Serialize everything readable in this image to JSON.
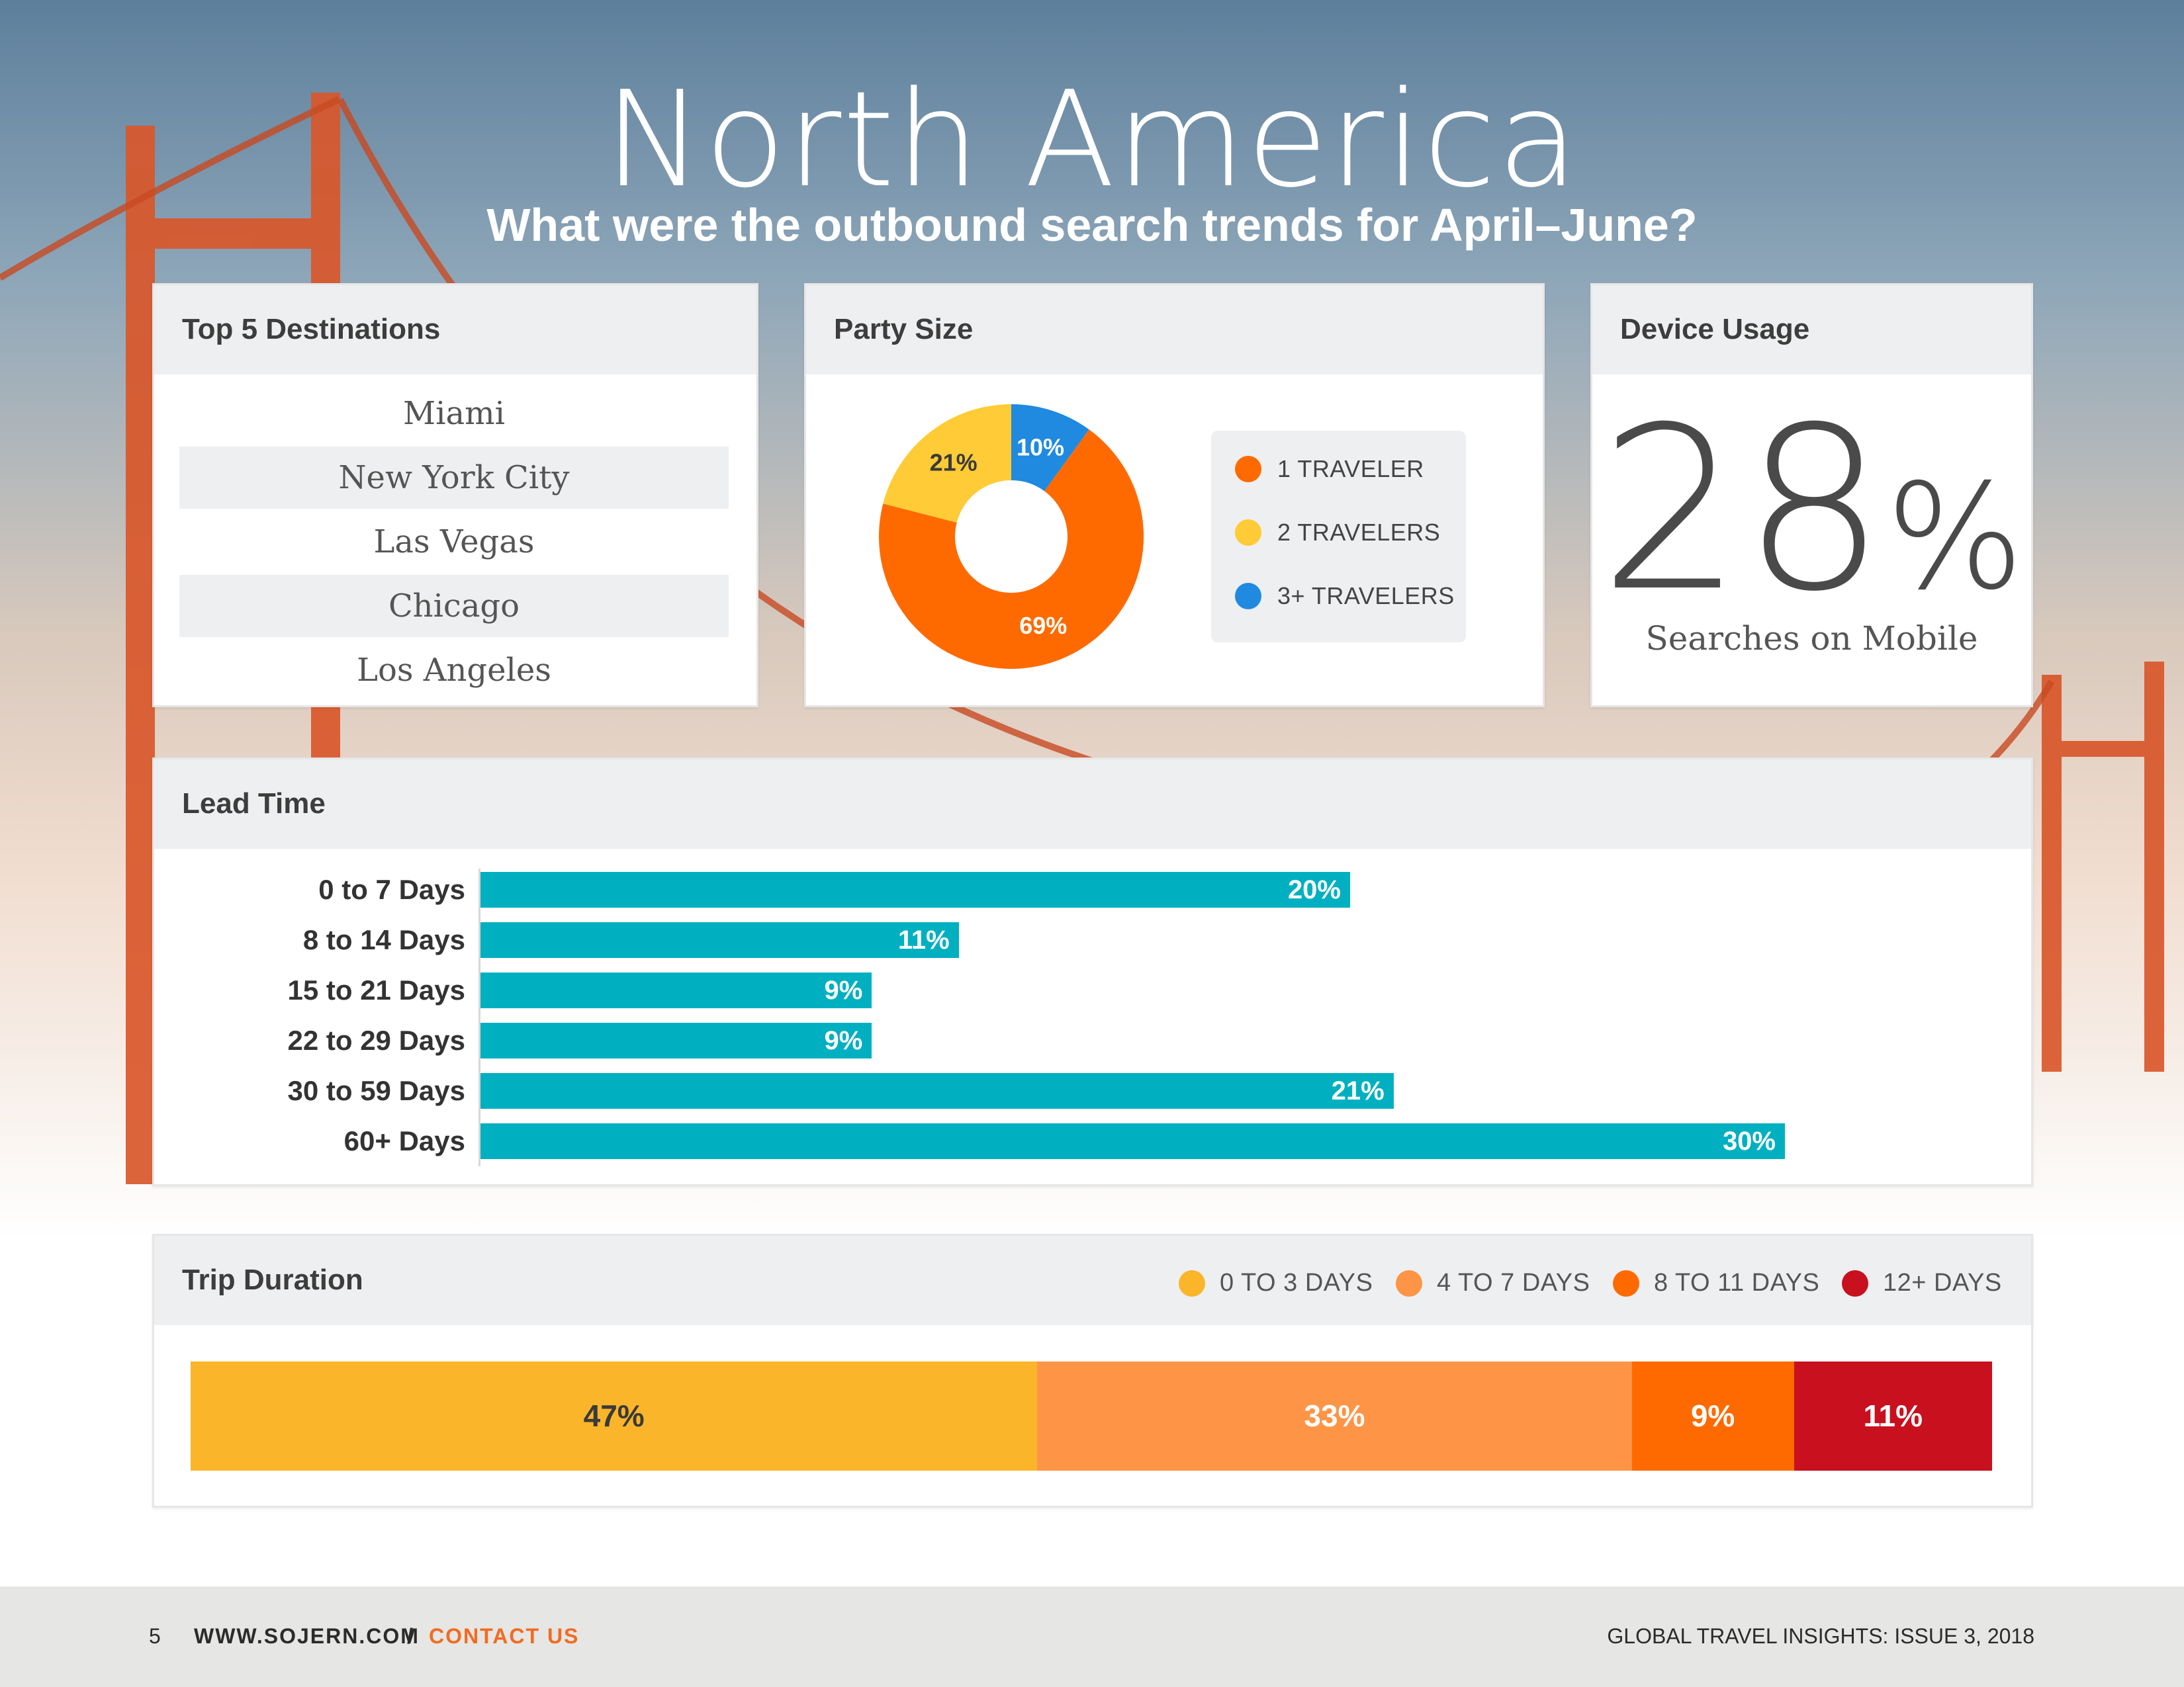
{
  "page": {
    "title": "North America",
    "subtitle": "What were the outbound search trends for April–June?"
  },
  "colors": {
    "orange": "#ff6a00",
    "yellow": "#ffcb36",
    "blue": "#1f8ae0",
    "teal": "#00b0c0",
    "trip_0_3": "#fbb52a",
    "trip_4_7": "#fe9446",
    "trip_8_11": "#ff6a00",
    "trip_12": "#c8101e"
  },
  "destinations": {
    "title": "Top 5 Destinations",
    "items": [
      "Miami",
      "New York City",
      "Las Vegas",
      "Chicago",
      "Los Angeles"
    ]
  },
  "party": {
    "title": "Party Size",
    "legend": [
      "1 TRAVELER",
      "2 TRAVELERS",
      "3+ TRAVELERS"
    ]
  },
  "device": {
    "title": "Device Usage",
    "value": "28",
    "symbol": "%",
    "label": "Searches on Mobile"
  },
  "lead": {
    "title": "Lead Time"
  },
  "trip": {
    "title": "Trip Duration",
    "legend": [
      "0 TO 3 DAYS",
      "4 TO 7 DAYS",
      "8 TO 11 DAYS",
      "12+ DAYS"
    ]
  },
  "footer": {
    "page_number": "5",
    "website": "WWW.SOJERN.COM",
    "separator": "/",
    "contact": "CONTACT US",
    "issue": "GLOBAL TRAVEL INSIGHTS: ISSUE 3, 2018"
  },
  "chart_data": [
    {
      "type": "pie",
      "title": "Party Size",
      "categories": [
        "1 TRAVELER",
        "2 TRAVELERS",
        "3+ TRAVELERS"
      ],
      "values": [
        69,
        21,
        10
      ],
      "labels": [
        "69%",
        "21%",
        "10%"
      ]
    },
    {
      "type": "bar",
      "title": "Lead Time",
      "orientation": "horizontal",
      "categories": [
        "0 to 7 Days",
        "8 to 14 Days",
        "15 to 21 Days",
        "22 to 29 Days",
        "30 to 59 Days",
        "60+ Days"
      ],
      "values": [
        20,
        11,
        9,
        9,
        21,
        30
      ],
      "labels": [
        "20%",
        "11%",
        "9%",
        "9%",
        "21%",
        "30%"
      ],
      "xlim": [
        0,
        32
      ]
    },
    {
      "type": "bar",
      "title": "Trip Duration",
      "stacked": true,
      "categories": [
        "0 TO 3 DAYS",
        "4 TO 7 DAYS",
        "8 TO 11 DAYS",
        "12+ DAYS"
      ],
      "values": [
        47,
        33,
        9,
        11
      ],
      "labels": [
        "47%",
        "33%",
        "9%",
        "11%"
      ]
    }
  ]
}
